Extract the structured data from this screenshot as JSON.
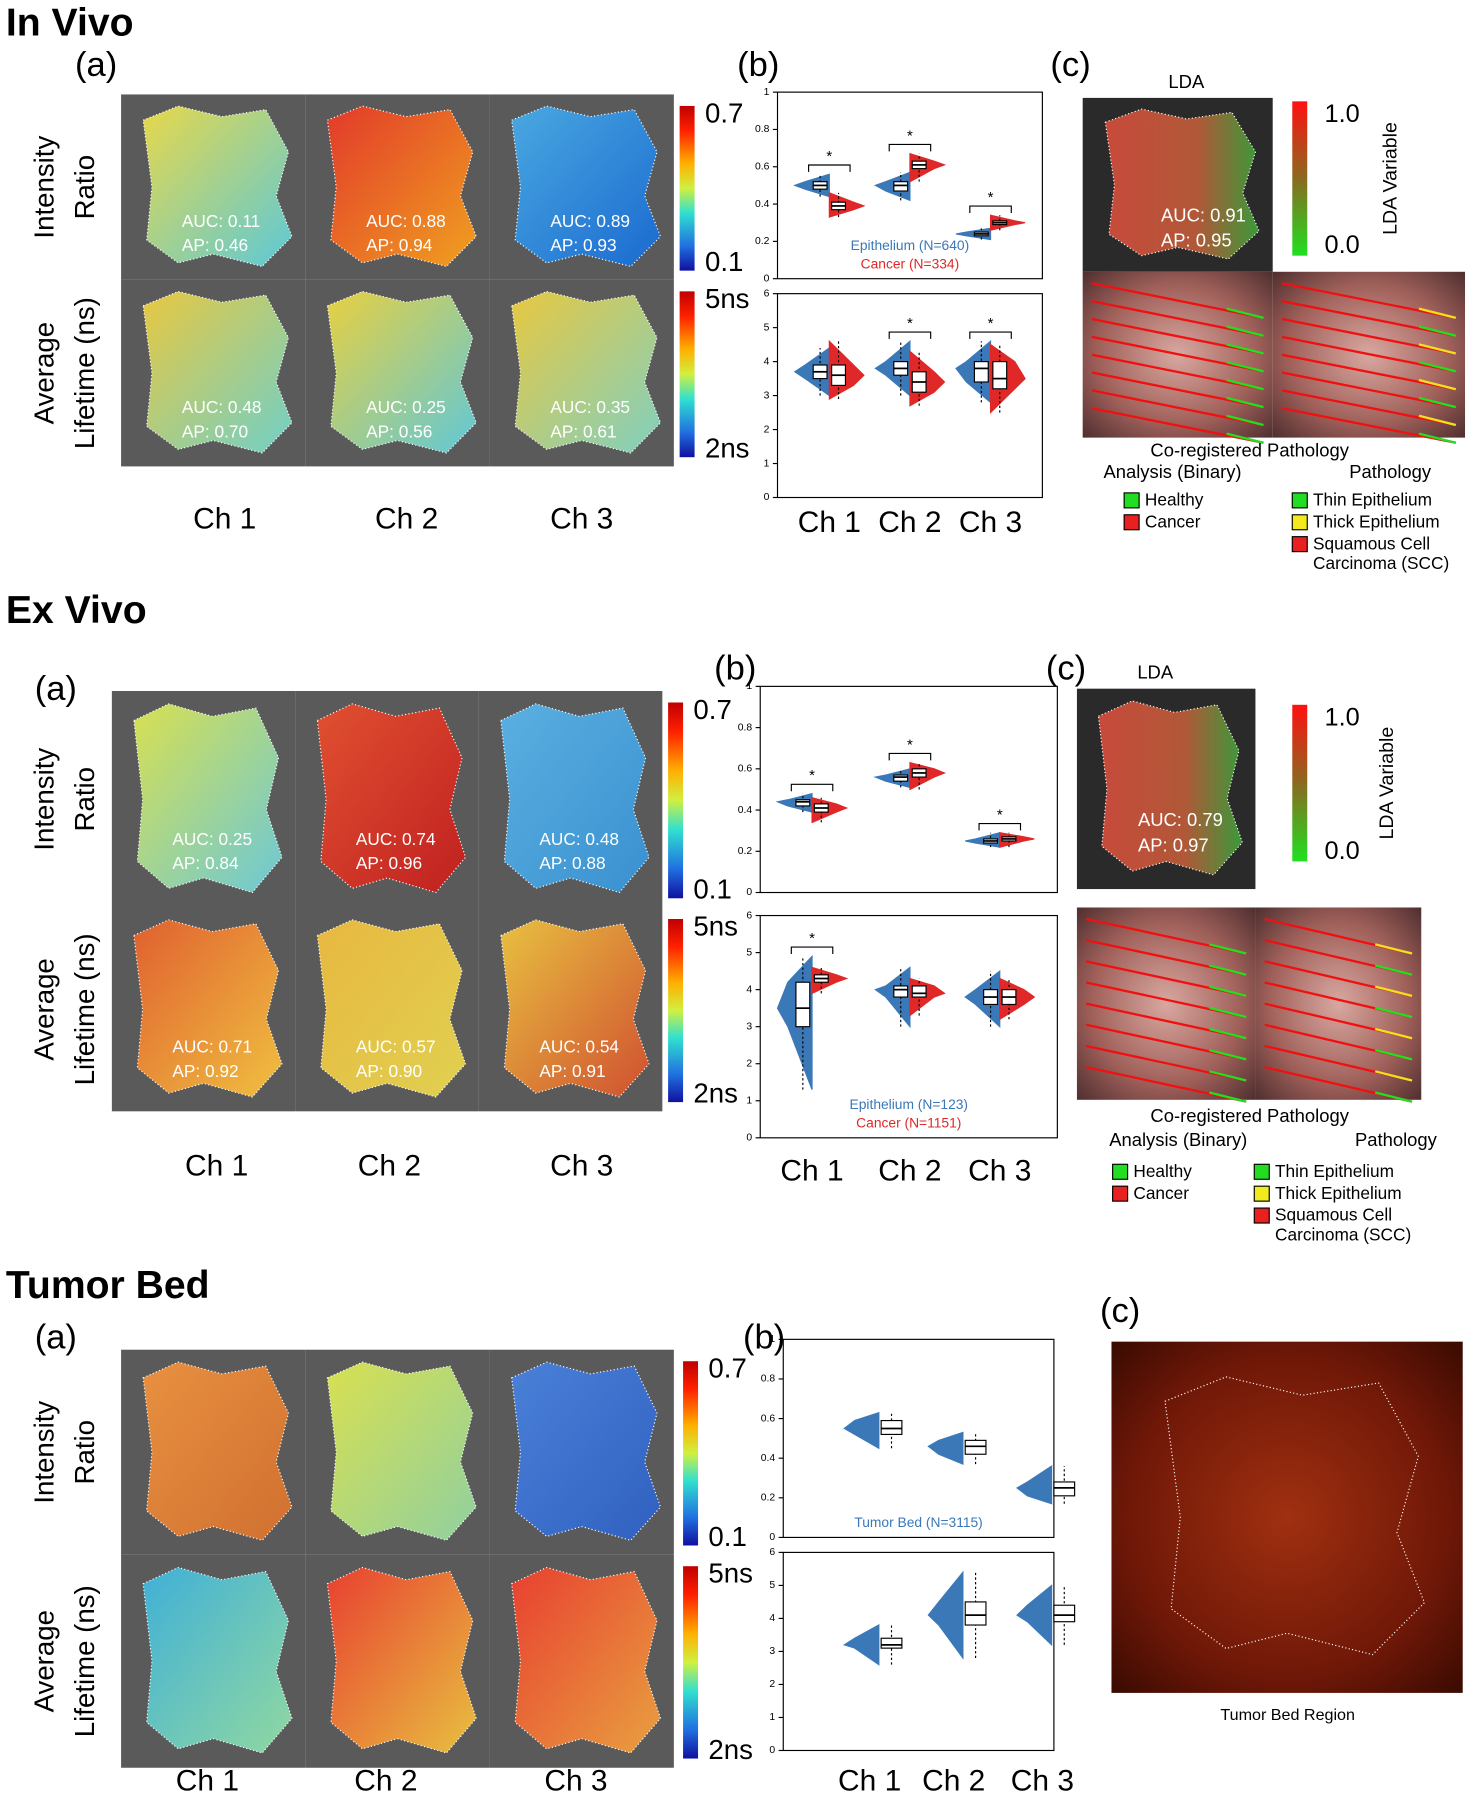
{
  "sections": [
    {
      "title": "In Vivo",
      "a": {
        "label": "(a)",
        "rows": [
          [
            "Intensity",
            "Ratio"
          ],
          [
            "Average",
            "Lifetime (ns)"
          ]
        ],
        "metrics": [
          [
            [
              "AUC: 0.11",
              "AP: 0.46"
            ],
            [
              "AUC: 0.88",
              "AP: 0.94"
            ],
            [
              "AUC: 0.89",
              "AP: 0.93"
            ]
          ],
          [
            [
              "AUC: 0.48",
              "AP: 0.70"
            ],
            [
              "AUC: 0.25",
              "AP: 0.56"
            ],
            [
              "AUC: 0.35",
              "AP: 0.61"
            ]
          ]
        ],
        "colorbars": [
          [
            "0.7",
            "0.1"
          ],
          [
            "5ns",
            "2ns"
          ]
        ],
        "channels": [
          "Ch 1",
          "Ch 2",
          "Ch 3"
        ]
      },
      "b": {
        "label": "(b)"
      },
      "c": {
        "label": "(c)",
        "title": "LDA",
        "metrics": [
          "AUC: 0.91",
          "AP:  0.95"
        ],
        "colorbar": [
          "1.0",
          "0.0"
        ],
        "colorbar_title": "LDA Variable",
        "heading": "Co-registered Pathology",
        "columns": [
          {
            "title": "Analysis (Binary)",
            "items": [
              {
                "lines": [
                  "Healthy"
                ],
                "color": "#22dd22"
              },
              {
                "lines": [
                  "Cancer"
                ],
                "color": "#e82020"
              }
            ]
          },
          {
            "title": "Pathology",
            "items": [
              {
                "lines": [
                  "Thin Epithelium"
                ],
                "color": "#22dd22"
              },
              {
                "lines": [
                  "Thick Epithelium"
                ],
                "color": "#f2ea1c"
              },
              {
                "lines": [
                  "Squamous Cell",
                  "Carcinoma (SCC)"
                ],
                "color": "#e82020"
              }
            ]
          }
        ]
      }
    },
    {
      "title": "Ex Vivo",
      "a": {
        "label": "(a)",
        "rows": [
          [
            "Intensity",
            "Ratio"
          ],
          [
            "Average",
            "Lifetime (ns)"
          ]
        ],
        "metrics": [
          [
            [
              "AUC: 0.25",
              "AP: 0.84"
            ],
            [
              "AUC: 0.74",
              "AP: 0.96"
            ],
            [
              "AUC: 0.48",
              "AP: 0.88"
            ]
          ],
          [
            [
              "AUC: 0.71",
              "AP: 0.92"
            ],
            [
              "AUC: 0.57",
              "AP: 0.90"
            ],
            [
              "AUC: 0.54",
              "AP: 0.91"
            ]
          ]
        ],
        "colorbars": [
          [
            "0.7",
            "0.1"
          ],
          [
            "5ns",
            "2ns"
          ]
        ],
        "channels": [
          "Ch 1",
          "Ch 2",
          "Ch 3"
        ]
      },
      "b": {
        "label": "(b)"
      },
      "c": {
        "label": "(c)",
        "title": "LDA",
        "metrics": [
          "AUC: 0.79",
          "AP:  0.97"
        ],
        "colorbar": [
          "1.0",
          "0.0"
        ],
        "colorbar_title": "LDA Variable",
        "heading": "Co-registered Pathology",
        "columns": [
          {
            "title": "Analysis (Binary)",
            "items": [
              {
                "lines": [
                  "Healthy"
                ],
                "color": "#22dd22"
              },
              {
                "lines": [
                  "Cancer"
                ],
                "color": "#e82020"
              }
            ]
          },
          {
            "title": "Pathology",
            "items": [
              {
                "lines": [
                  "Thin Epithelium"
                ],
                "color": "#22dd22"
              },
              {
                "lines": [
                  "Thick Epithelium"
                ],
                "color": "#f2ea1c"
              },
              {
                "lines": [
                  "Squamous Cell",
                  "Carcinoma (SCC)"
                ],
                "color": "#e82020"
              }
            ]
          }
        ]
      }
    },
    {
      "title": "Tumor Bed",
      "a": {
        "label": "(a)",
        "rows": [
          [
            "Intensity",
            "Ratio"
          ],
          [
            "Average",
            "Lifetime (ns)"
          ]
        ],
        "colorbars": [
          [
            "0.7",
            "0.1"
          ],
          [
            "5ns",
            "2ns"
          ]
        ],
        "channels": [
          "Ch 1",
          "Ch 2",
          "Ch 3"
        ]
      },
      "b": {
        "label": "(b)"
      },
      "c": {
        "label": "(c)",
        "caption": "Tumor Bed Region"
      }
    }
  ],
  "chart_data": [
    {
      "type": "violin",
      "categories": [
        null,
        null,
        null
      ],
      "ylim": [
        0,
        1
      ],
      "yticks": [
        0,
        0.2,
        0.4,
        0.6,
        0.8,
        1
      ],
      "legend": "bottom",
      "significance": [
        "*",
        "*",
        "*"
      ],
      "series": [
        {
          "name": "Epithelium (N=640)",
          "color": "#3a78b8",
          "median": [
            0.5,
            0.5,
            0.24
          ],
          "q1": [
            0.48,
            0.47,
            0.23
          ],
          "q3": [
            0.52,
            0.52,
            0.25
          ],
          "min": [
            0.44,
            0.42,
            0.21
          ],
          "max": [
            0.56,
            0.57,
            0.27
          ]
        },
        {
          "name": "Cancer (N=334)",
          "color": "#e02828",
          "median": [
            0.39,
            0.61,
            0.3
          ],
          "q1": [
            0.37,
            0.59,
            0.29
          ],
          "q3": [
            0.41,
            0.63,
            0.31
          ],
          "min": [
            0.33,
            0.52,
            0.26
          ],
          "max": [
            0.46,
            0.67,
            0.34
          ]
        }
      ]
    },
    {
      "type": "violin",
      "categories": [
        "Ch 1",
        "Ch 2",
        "Ch 3"
      ],
      "ylim": [
        0,
        6
      ],
      "yticks": [
        0,
        1,
        2,
        3,
        4,
        5,
        6
      ],
      "significance": [
        null,
        "*",
        "*"
      ],
      "series": [
        {
          "color": "#3a78b8",
          "median": [
            3.7,
            3.8,
            3.8
          ],
          "q1": [
            3.5,
            3.6,
            3.4
          ],
          "q3": [
            3.9,
            4.0,
            4.0
          ],
          "min": [
            3.0,
            3.0,
            2.8
          ],
          "max": [
            4.4,
            4.6,
            4.6
          ]
        },
        {
          "color": "#e02828",
          "median": [
            3.6,
            3.4,
            3.5
          ],
          "q1": [
            3.3,
            3.1,
            3.2
          ],
          "q3": [
            3.9,
            3.7,
            4.0
          ],
          "min": [
            2.9,
            2.7,
            2.5
          ],
          "max": [
            4.6,
            4.3,
            4.5
          ]
        }
      ]
    },
    {
      "type": "violin",
      "categories": [
        null,
        null,
        null
      ],
      "ylim": [
        0,
        1
      ],
      "yticks": [
        0,
        0.2,
        0.4,
        0.6,
        0.8,
        1
      ],
      "significance": [
        "*",
        "*",
        "*"
      ],
      "series": [
        {
          "color": "#3a78b8",
          "median": [
            0.44,
            0.56,
            0.25
          ],
          "q1": [
            0.42,
            0.54,
            0.24
          ],
          "q3": [
            0.45,
            0.57,
            0.26
          ],
          "min": [
            0.39,
            0.51,
            0.22
          ],
          "max": [
            0.48,
            0.6,
            0.29
          ]
        },
        {
          "color": "#e02828",
          "median": [
            0.41,
            0.58,
            0.26
          ],
          "q1": [
            0.39,
            0.56,
            0.25
          ],
          "q3": [
            0.43,
            0.6,
            0.27
          ],
          "min": [
            0.34,
            0.5,
            0.22
          ],
          "max": [
            0.46,
            0.63,
            0.29
          ]
        }
      ]
    },
    {
      "type": "violin",
      "categories": [
        "Ch 1",
        "Ch 2",
        "Ch 3"
      ],
      "ylim": [
        0,
        6
      ],
      "yticks": [
        0,
        1,
        2,
        3,
        4,
        5,
        6
      ],
      "legend": "bottom",
      "significance": [
        "*",
        null,
        null
      ],
      "series": [
        {
          "name": "Epithelium (N=123)",
          "color": "#3a78b8",
          "median": [
            3.5,
            4.0,
            3.8
          ],
          "q1": [
            3.0,
            3.8,
            3.6
          ],
          "q3": [
            4.2,
            4.1,
            4.0
          ],
          "min": [
            1.3,
            3.0,
            3.0
          ],
          "max": [
            4.9,
            4.6,
            4.5
          ]
        },
        {
          "name": "Cancer (N=1151)",
          "color": "#e02828",
          "median": [
            4.3,
            3.9,
            3.8
          ],
          "q1": [
            4.2,
            3.8,
            3.6
          ],
          "q3": [
            4.4,
            4.1,
            4.0
          ],
          "min": [
            3.9,
            3.3,
            3.2
          ],
          "max": [
            4.6,
            4.3,
            4.3
          ]
        }
      ]
    },
    {
      "type": "violin",
      "categories": [
        null,
        null,
        null
      ],
      "ylim": [
        0,
        1
      ],
      "yticks": [
        0,
        0.2,
        0.4,
        0.6,
        0.8,
        1
      ],
      "legend": "bottom",
      "series": [
        {
          "name": "Tumor Bed (N=3115)",
          "color": "#3a78b8",
          "median": [
            0.55,
            0.46,
            0.25
          ],
          "q1": [
            0.52,
            0.42,
            0.21
          ],
          "q3": [
            0.59,
            0.49,
            0.28
          ],
          "min": [
            0.45,
            0.37,
            0.17
          ],
          "max": [
            0.63,
            0.53,
            0.36
          ]
        }
      ]
    },
    {
      "type": "violin",
      "categories": [
        "Ch 1",
        "Ch 2",
        "Ch 3"
      ],
      "ylim": [
        0,
        6
      ],
      "yticks": [
        0,
        1,
        2,
        3,
        4,
        5,
        6
      ],
      "series": [
        {
          "color": "#3a78b8",
          "median": [
            3.2,
            4.1,
            4.1
          ],
          "q1": [
            3.1,
            3.8,
            3.9
          ],
          "q3": [
            3.4,
            4.5,
            4.4
          ],
          "min": [
            2.6,
            2.8,
            3.2
          ],
          "max": [
            3.8,
            5.4,
            5.0
          ]
        }
      ]
    }
  ]
}
